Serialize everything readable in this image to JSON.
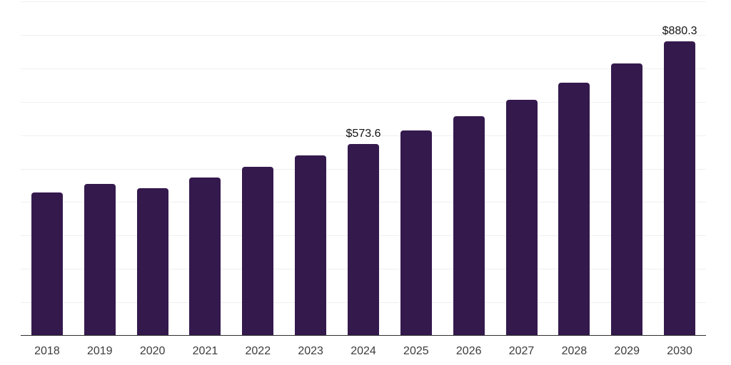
{
  "chart_data": {
    "type": "bar",
    "title": "",
    "xlabel": "",
    "ylabel": "",
    "categories": [
      "2018",
      "2019",
      "2020",
      "2021",
      "2022",
      "2023",
      "2024",
      "2025",
      "2026",
      "2027",
      "2028",
      "2029",
      "2030"
    ],
    "values": [
      428.6,
      454.4,
      441.6,
      472.9,
      504.7,
      538.7,
      573.6,
      614.3,
      657.6,
      704.9,
      757.4,
      814.7,
      880.3
    ],
    "data_labels": [
      "",
      "",
      "",
      "",
      "",
      "",
      "$573.6",
      "",
      "",
      "",
      "",
      "",
      "$880.3"
    ],
    "ylim": [
      0,
      1000
    ],
    "grid_interval": 100,
    "grid": true,
    "legend": false
  },
  "style": {
    "bar_color": "#34194D",
    "grid_color": "#EFEFEF",
    "axis_color": "#2E2E2E",
    "tick_color": "#3C3C3C",
    "label_color": "#141414",
    "background_color": "#FFFFFF"
  }
}
